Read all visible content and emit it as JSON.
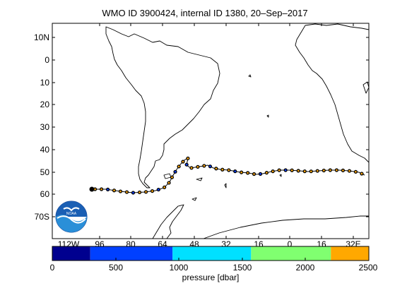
{
  "title": "WMO ID 3900424, internal ID 1380, 20–Sep–2017",
  "map": {
    "lat_ticks": [
      "10N",
      "0",
      "10",
      "20",
      "30",
      "40",
      "50",
      "60",
      "70S"
    ],
    "lon_ticks": [
      "112W",
      "96",
      "80",
      "64",
      "48",
      "32",
      "16",
      "0",
      "16",
      "32E"
    ],
    "land_color": "#ffffff",
    "coast_color": "#000000",
    "track_color": "#000000",
    "logo": {
      "text": "NOAA",
      "icon": "noaa-logo-icon"
    },
    "profiles": [
      {
        "pressure_band": 1,
        "count": 9
      },
      {
        "pressure_band": 4,
        "count": 38
      }
    ]
  },
  "colorbar": {
    "label": "pressure [dbar]",
    "ticks": [
      "0",
      "500",
      "1000",
      "1500",
      "2000",
      "2500"
    ],
    "bands": [
      {
        "from": 0,
        "to": 300,
        "color": "#00008f"
      },
      {
        "from": 300,
        "to": 950,
        "color": "#0040ff"
      },
      {
        "from": 950,
        "to": 1570,
        "color": "#00e0ff"
      },
      {
        "from": 1570,
        "to": 2200,
        "color": "#80ff70"
      },
      {
        "from": 2200,
        "to": 2500,
        "color": "#ffa800"
      }
    ]
  }
}
